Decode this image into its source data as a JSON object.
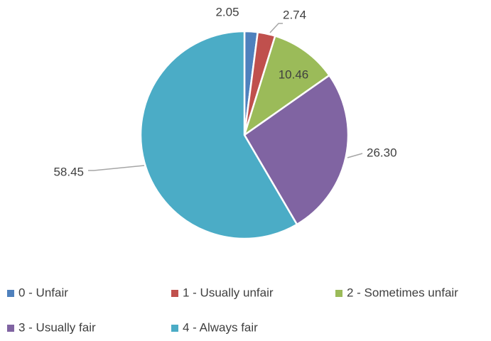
{
  "chart_data": {
    "type": "pie",
    "categories": [
      "0 - Unfair",
      "1 - Usually unfair",
      "2 - Sometimes unfair",
      "3 - Usually fair",
      "4 - Always fair"
    ],
    "values": [
      2.05,
      2.74,
      10.46,
      26.3,
      58.45
    ],
    "value_labels": [
      "2.05",
      "2.74",
      "10.46",
      "26.30",
      "58.45"
    ],
    "colors": [
      "#4f81bd",
      "#c0504d",
      "#9bbb59",
      "#8064a2",
      "#4bacc6"
    ],
    "legend": "bottom"
  }
}
